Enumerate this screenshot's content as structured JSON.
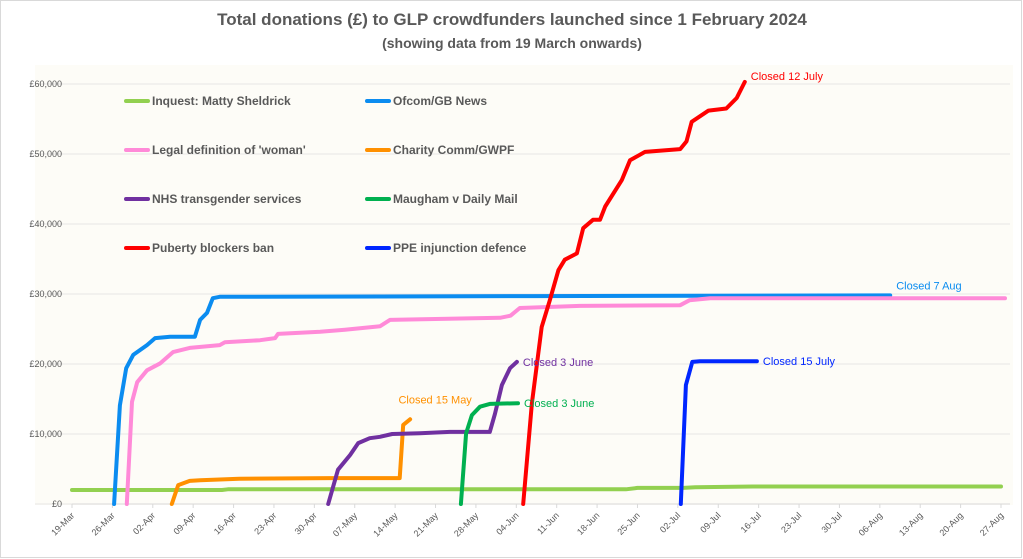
{
  "chart_data": {
    "type": "line",
    "title": "Total donations (£) to GLP crowdfunders launched since 1 February 2024",
    "subtitle": "(showing data from 19 March onwards)",
    "x_unit": "days since 19 March 2024",
    "xlim": [
      0,
      161
    ],
    "ylim": [
      0,
      60000
    ],
    "yticks": [
      0,
      10000,
      20000,
      30000,
      40000,
      50000,
      60000
    ],
    "ytick_labels": [
      "£0",
      "£10,000",
      "£20,000",
      "£30,000",
      "£40,000",
      "£50,000",
      "£60,000"
    ],
    "xtick_labels": [
      "19-Mar",
      "26-Mar",
      "02-Apr",
      "09-Apr",
      "16-Apr",
      "23-Apr",
      "30-Apr",
      "07-May",
      "14-May",
      "21-May",
      "28-May",
      "04-Jun",
      "11-Jun",
      "18-Jun",
      "25-Jun",
      "02-Jul",
      "09-Jul",
      "16-Jul",
      "23-Jul",
      "30-Jul",
      "06-Aug",
      "13-Aug",
      "20-Aug",
      "27-Aug"
    ],
    "grid": true,
    "legend_placement": "top-left inside",
    "series": [
      {
        "name": "Inquest: Matty Sheldrick",
        "color": "#92d050",
        "points": [
          [
            0,
            2000
          ],
          [
            26,
            2000
          ],
          [
            27,
            2100
          ],
          [
            96,
            2100
          ],
          [
            98,
            2300
          ],
          [
            106,
            2300
          ],
          [
            108,
            2400
          ],
          [
            118,
            2500
          ],
          [
            161,
            2500
          ]
        ]
      },
      {
        "name": "Ofcom/GB News",
        "color": "#0b8cf0",
        "points": [
          [
            7.3,
            0
          ],
          [
            8.3,
            14100
          ],
          [
            9.4,
            19400
          ],
          [
            10.6,
            21300
          ],
          [
            13,
            22700
          ],
          [
            14.4,
            23700
          ],
          [
            17,
            23900
          ],
          [
            21.3,
            23900
          ],
          [
            22.2,
            26300
          ],
          [
            23.4,
            27300
          ],
          [
            24.4,
            29400
          ],
          [
            25.6,
            29600
          ],
          [
            80,
            29700
          ],
          [
            141.8,
            29800
          ]
        ],
        "annotation": "Closed 7 Aug"
      },
      {
        "name": "Legal definition of 'woman'",
        "color": "#ff8ad8",
        "points": [
          [
            9.5,
            0
          ],
          [
            10.4,
            14600
          ],
          [
            11.3,
            17400
          ],
          [
            13,
            19100
          ],
          [
            15.3,
            20100
          ],
          [
            17.5,
            21700
          ],
          [
            20.4,
            22300
          ],
          [
            25.6,
            22700
          ],
          [
            26.5,
            23100
          ],
          [
            32.6,
            23400
          ],
          [
            35.2,
            23700
          ],
          [
            35.7,
            24300
          ],
          [
            43,
            24600
          ],
          [
            47.3,
            24900
          ],
          [
            53.4,
            25400
          ],
          [
            55.1,
            26300
          ],
          [
            74.2,
            26600
          ],
          [
            76,
            26900
          ],
          [
            77.6,
            28000
          ],
          [
            88,
            28300
          ],
          [
            105.4,
            28400
          ],
          [
            107,
            29100
          ],
          [
            110.6,
            29400
          ],
          [
            161.7,
            29400
          ]
        ]
      },
      {
        "name": "Charity Comm/GWPF",
        "color": "#ff9000",
        "points": [
          [
            17.3,
            0
          ],
          [
            18.4,
            2700
          ],
          [
            20.4,
            3300
          ],
          [
            22.2,
            3400
          ],
          [
            29,
            3600
          ],
          [
            44.7,
            3700
          ],
          [
            56.8,
            3700
          ],
          [
            57.4,
            11300
          ],
          [
            58.6,
            12100
          ]
        ],
        "annotation": "Closed 15 May"
      },
      {
        "name": "NHS transgender services",
        "color": "#7030a0",
        "points": [
          [
            44.4,
            0
          ],
          [
            46.1,
            4900
          ],
          [
            48.2,
            7000
          ],
          [
            49.6,
            8700
          ],
          [
            51.6,
            9400
          ],
          [
            53.4,
            9600
          ],
          [
            55.5,
            10000
          ],
          [
            60.3,
            10100
          ],
          [
            65.5,
            10300
          ],
          [
            72.4,
            10300
          ],
          [
            73.3,
            12900
          ],
          [
            74.5,
            17000
          ],
          [
            75.9,
            19400
          ],
          [
            77.1,
            20300
          ]
        ],
        "annotation": "Closed 3 June"
      },
      {
        "name": "Maugham v Daily Mail",
        "color": "#00b050",
        "points": [
          [
            67.4,
            0
          ],
          [
            68.3,
            10100
          ],
          [
            69.3,
            12700
          ],
          [
            70.7,
            13900
          ],
          [
            72.4,
            14300
          ],
          [
            77.3,
            14400
          ]
        ],
        "annotation": "Closed 3 June"
      },
      {
        "name": "Puberty blockers ban",
        "color": "#ff0000",
        "points": [
          [
            78.2,
            0
          ],
          [
            79.7,
            14400
          ],
          [
            81.4,
            25300
          ],
          [
            82.8,
            29100
          ],
          [
            84.3,
            33400
          ],
          [
            85.4,
            34900
          ],
          [
            87.5,
            35800
          ],
          [
            88.6,
            39400
          ],
          [
            90.3,
            40600
          ],
          [
            91.5,
            40600
          ],
          [
            92.4,
            42500
          ],
          [
            95.3,
            46300
          ],
          [
            96.7,
            49100
          ],
          [
            99.3,
            50300
          ],
          [
            105.4,
            50700
          ],
          [
            106.5,
            51800
          ],
          [
            107.4,
            54600
          ],
          [
            110.3,
            56200
          ],
          [
            113.4,
            56500
          ],
          [
            115.2,
            58000
          ],
          [
            116.6,
            60300
          ]
        ],
        "annotation": "Closed 12 July"
      },
      {
        "name": "PPE injunction defence",
        "color": "#0026ff",
        "points": [
          [
            105.5,
            0
          ],
          [
            106.4,
            17000
          ],
          [
            107.5,
            20300
          ],
          [
            108.8,
            20400
          ],
          [
            118.7,
            20400
          ]
        ],
        "annotation": "Closed 15 July"
      }
    ]
  }
}
